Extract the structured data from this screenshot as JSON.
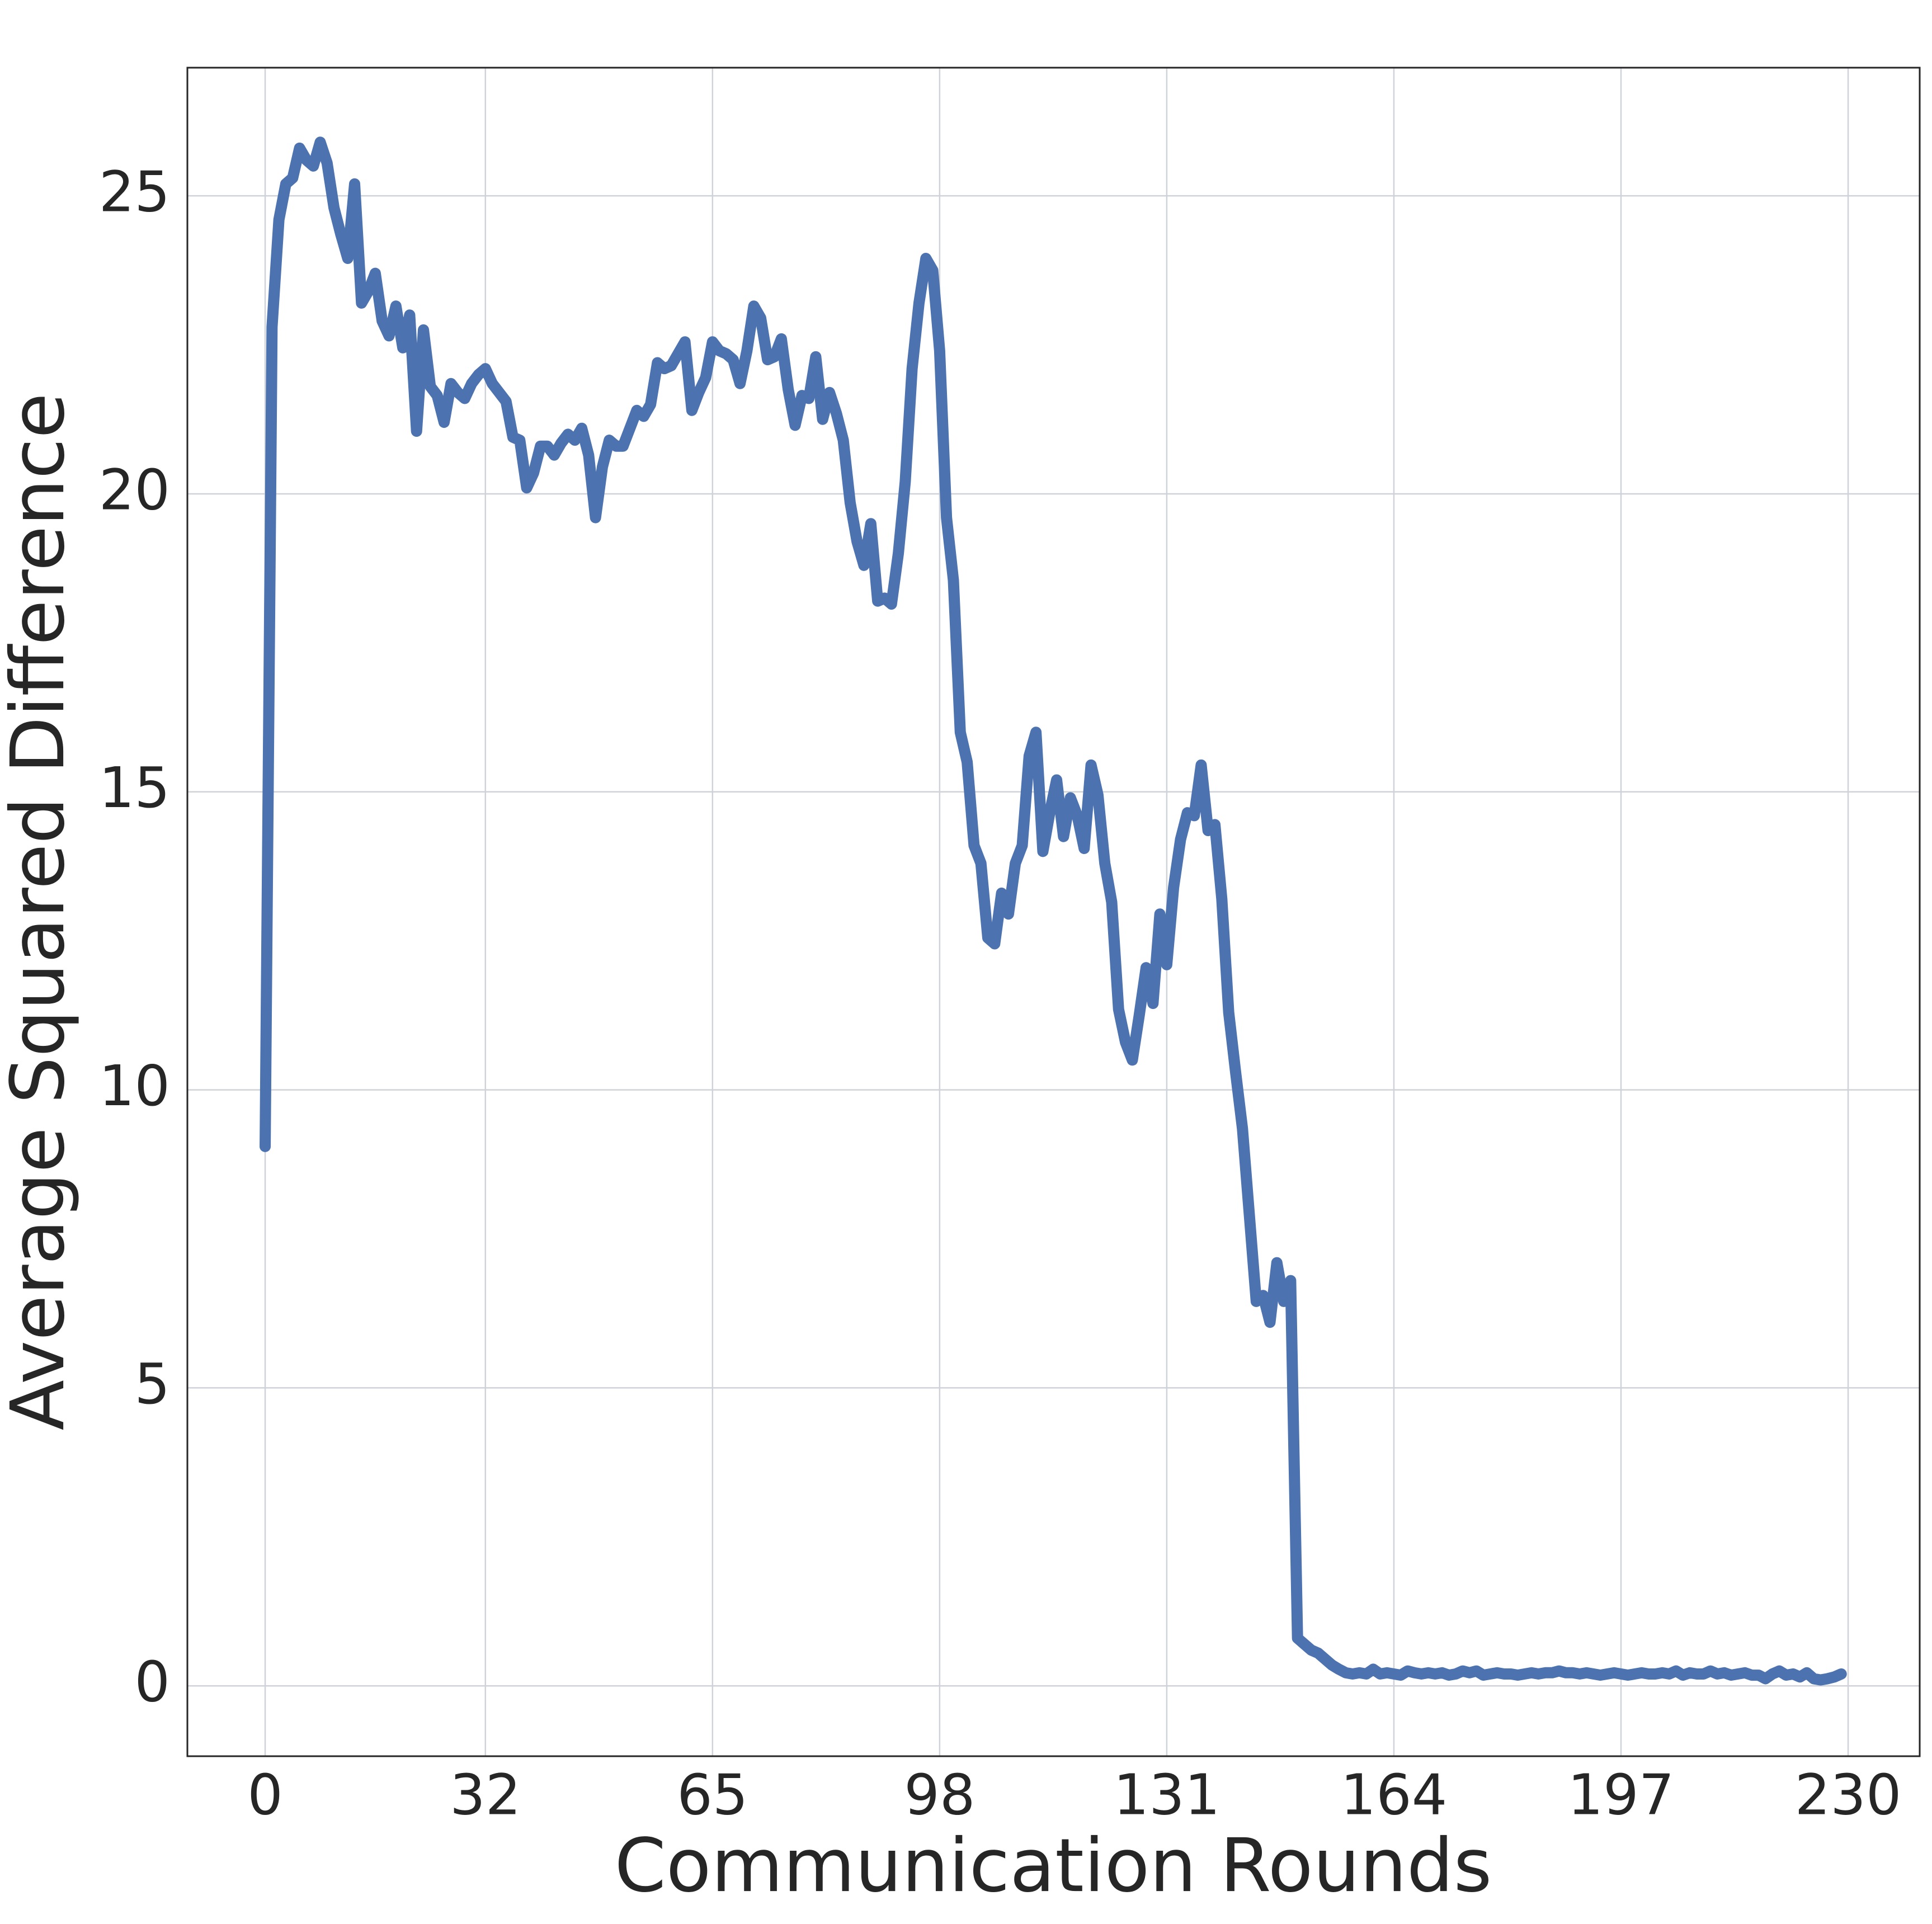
{
  "chart_data": {
    "type": "line",
    "xlabel": "Communication Rounds",
    "ylabel": "Average Squared Difference",
    "x": [
      0,
      1,
      2,
      3,
      4,
      5,
      6,
      7,
      8,
      9,
      10,
      11,
      12,
      13,
      14,
      15,
      16,
      17,
      18,
      19,
      20,
      21,
      22,
      23,
      24,
      25,
      26,
      27,
      28,
      29,
      30,
      31,
      32,
      33,
      34,
      35,
      36,
      37,
      38,
      39,
      40,
      41,
      42,
      43,
      44,
      45,
      46,
      47,
      48,
      49,
      50,
      51,
      52,
      53,
      54,
      55,
      56,
      57,
      58,
      59,
      60,
      61,
      62,
      63,
      64,
      65,
      66,
      67,
      68,
      69,
      70,
      71,
      72,
      73,
      74,
      75,
      76,
      77,
      78,
      79,
      80,
      81,
      82,
      83,
      84,
      85,
      86,
      87,
      88,
      89,
      90,
      91,
      92,
      93,
      94,
      95,
      96,
      97,
      98,
      99,
      100,
      101,
      102,
      103,
      104,
      105,
      106,
      107,
      108,
      109,
      110,
      111,
      112,
      113,
      114,
      115,
      116,
      117,
      118,
      119,
      120,
      121,
      122,
      123,
      124,
      125,
      126,
      127,
      128,
      129,
      130,
      131,
      132,
      133,
      134,
      135,
      136,
      137,
      138,
      139,
      140,
      141,
      142,
      143,
      144,
      145,
      146,
      147,
      148,
      149,
      150,
      151,
      152,
      153,
      154,
      155,
      156,
      157,
      158,
      159,
      160,
      161,
      162,
      163,
      164,
      165,
      166,
      167,
      168,
      169,
      170,
      171,
      172,
      173,
      174,
      175,
      176,
      177,
      178,
      179,
      180,
      181,
      182,
      183,
      184,
      185,
      186,
      187,
      188,
      189,
      190,
      191,
      192,
      193,
      194,
      195,
      196,
      197,
      198,
      199,
      200,
      201,
      202,
      203,
      204,
      205,
      206,
      207,
      208,
      209,
      210,
      211,
      212,
      213,
      214,
      215,
      216,
      217,
      218,
      219,
      220,
      221,
      222,
      223,
      224,
      225,
      226,
      227,
      228,
      229
    ],
    "series": [
      {
        "color": "#4c72b0",
        "values": [
          9.05,
          22.8,
          24.6,
          25.2,
          25.3,
          25.8,
          25.6,
          25.5,
          25.9,
          25.55,
          24.8,
          24.35,
          23.95,
          25.2,
          23.2,
          23.4,
          23.7,
          22.9,
          22.65,
          23.15,
          22.45,
          23.0,
          21.05,
          22.75,
          21.8,
          21.65,
          21.2,
          21.85,
          21.7,
          21.6,
          21.85,
          22.0,
          22.1,
          21.85,
          21.7,
          21.55,
          20.95,
          20.9,
          20.1,
          20.35,
          20.8,
          20.8,
          20.65,
          20.85,
          21.0,
          20.9,
          21.1,
          20.65,
          19.6,
          20.45,
          20.9,
          20.8,
          20.8,
          21.1,
          21.4,
          21.3,
          21.5,
          22.2,
          22.1,
          22.15,
          22.35,
          22.55,
          21.4,
          21.7,
          21.95,
          22.55,
          22.4,
          22.35,
          22.25,
          21.85,
          22.4,
          23.15,
          22.95,
          22.25,
          22.3,
          22.6,
          21.75,
          21.15,
          21.65,
          21.6,
          22.3,
          21.25,
          21.7,
          21.35,
          20.9,
          19.85,
          19.2,
          18.8,
          19.5,
          18.2,
          18.25,
          18.15,
          19.0,
          20.2,
          22.1,
          23.2,
          23.95,
          23.75,
          22.4,
          19.6,
          18.55,
          16.0,
          15.5,
          14.1,
          13.8,
          12.55,
          12.45,
          13.3,
          12.95,
          13.8,
          14.1,
          15.6,
          16.0,
          14.0,
          14.65,
          15.2,
          14.25,
          14.9,
          14.6,
          14.05,
          15.45,
          14.95,
          13.8,
          13.15,
          11.35,
          10.8,
          10.5,
          11.25,
          12.05,
          11.45,
          12.95,
          12.1,
          13.4,
          14.2,
          14.65,
          14.6,
          15.45,
          14.35,
          14.45,
          13.2,
          11.3,
          10.3,
          9.35,
          7.9,
          6.45,
          6.55,
          6.1,
          7.1,
          6.45,
          6.8,
          0.8,
          0.7,
          0.6,
          0.55,
          0.45,
          0.35,
          0.28,
          0.22,
          0.2,
          0.22,
          0.2,
          0.28,
          0.2,
          0.22,
          0.2,
          0.18,
          0.25,
          0.22,
          0.2,
          0.22,
          0.2,
          0.22,
          0.18,
          0.2,
          0.25,
          0.22,
          0.25,
          0.18,
          0.2,
          0.22,
          0.2,
          0.2,
          0.18,
          0.2,
          0.22,
          0.2,
          0.22,
          0.22,
          0.25,
          0.22,
          0.22,
          0.2,
          0.22,
          0.2,
          0.18,
          0.2,
          0.22,
          0.2,
          0.18,
          0.2,
          0.22,
          0.2,
          0.2,
          0.22,
          0.2,
          0.25,
          0.18,
          0.22,
          0.2,
          0.2,
          0.25,
          0.2,
          0.22,
          0.18,
          0.2,
          0.22,
          0.18,
          0.18,
          0.12,
          0.2,
          0.25,
          0.18,
          0.2,
          0.15,
          0.22,
          0.12,
          0.1,
          0.12,
          0.15,
          0.2
        ]
      }
    ],
    "xlim": [
      -11.3,
      240.4
    ],
    "ylim": [
      -1.18,
      27.15
    ],
    "xticks": [
      0,
      32,
      65,
      98,
      131,
      164,
      197,
      230
    ],
    "yticks": [
      0,
      5,
      10,
      15,
      20,
      25
    ],
    "grid": true
  }
}
